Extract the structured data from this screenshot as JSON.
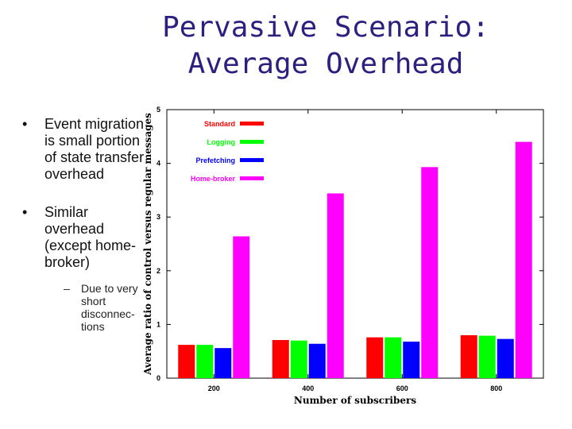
{
  "slide": {
    "title_line1": "Pervasive Scenario:",
    "title_line2": "Average Overhead",
    "bullet1": "Event migration is small portion of state transfer overhead",
    "bullet2": "Similar overhead (except home-broker)",
    "bullet2_sub": "Due to very short disconnec- tions",
    "bullet_glyph": "•",
    "sub_glyph": "–"
  },
  "chart_data": {
    "type": "bar",
    "categories": [
      "200",
      "400",
      "600",
      "800"
    ],
    "series": [
      {
        "name": "Standard",
        "color": "#ff0000",
        "values": [
          0.62,
          0.71,
          0.76,
          0.8
        ]
      },
      {
        "name": "Logging",
        "color": "#00ff00",
        "values": [
          0.62,
          0.7,
          0.76,
          0.79
        ]
      },
      {
        "name": "Prefetching",
        "color": "#0000ff",
        "values": [
          0.56,
          0.64,
          0.68,
          0.73
        ]
      },
      {
        "name": "Home-broker",
        "color": "#ff00ff",
        "values": [
          2.64,
          3.44,
          3.93,
          4.4
        ]
      }
    ],
    "xlabel": "Number of subscribers",
    "ylabel": "Average ratio of control versus regular messages",
    "ylim": [
      0,
      5
    ],
    "yticks": [
      "0",
      "1",
      "2",
      "3",
      "4",
      "5"
    ],
    "legend_position": "top-left",
    "grid": false
  }
}
